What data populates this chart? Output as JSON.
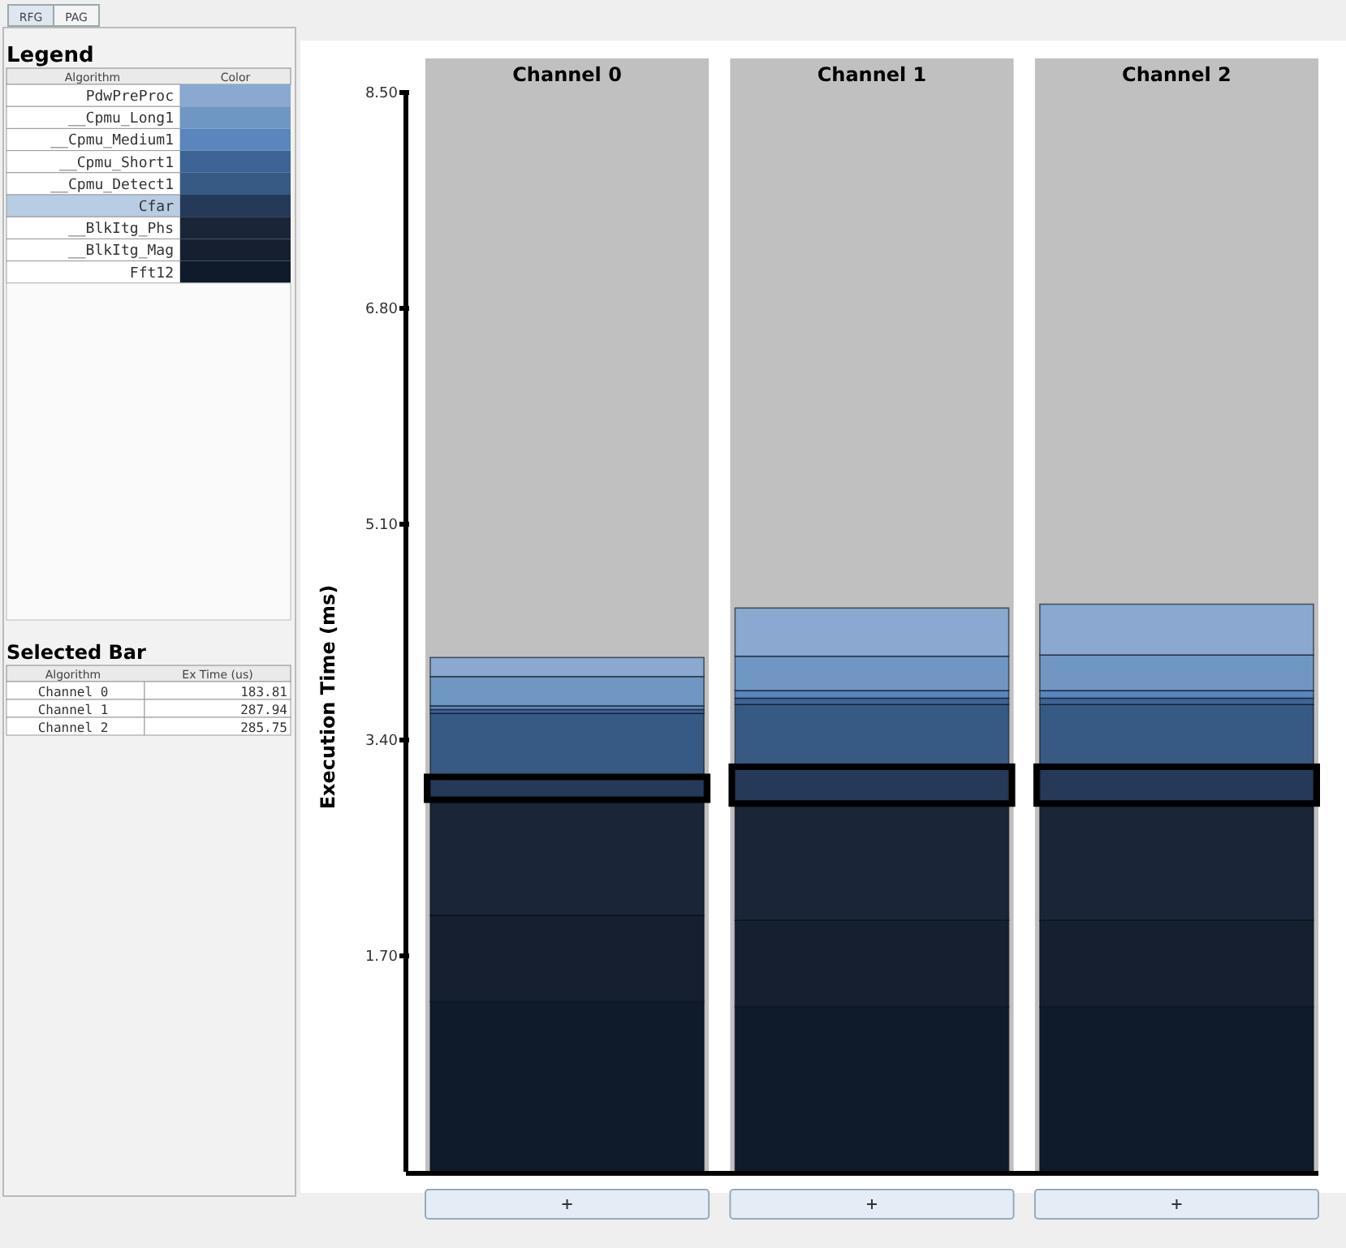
{
  "chart_data": {
    "type": "bar",
    "stacked": true,
    "ylabel": "Execution Time (ms)",
    "legend_title": "Legend",
    "legend": "left",
    "categories": [
      "Channel 0",
      "Channel 1",
      "Channel 2"
    ],
    "ylim": [
      0,
      8.5
    ],
    "yticks": [
      {
        "value": 1.7,
        "label": "1.70"
      },
      {
        "value": 3.4,
        "label": "3.40"
      },
      {
        "value": 5.1,
        "label": "5.10"
      },
      {
        "value": 6.8,
        "label": "6.80"
      },
      {
        "value": 8.5,
        "label": "8.50"
      }
    ],
    "series": [
      {
        "name": "Fft12",
        "color": "#0f1a2b",
        "values": [
          1.34,
          1.3,
          1.3
        ]
      },
      {
        "name": "__BlkItg_Mag",
        "color": "#151f30",
        "values": [
          0.68,
          0.68,
          0.68
        ]
      },
      {
        "name": "__BlkItg_Phs",
        "color": "#1a2538",
        "values": [
          0.91,
          0.92,
          0.92
        ]
      },
      {
        "name": "Cfar",
        "color": "#253a58",
        "values": [
          0.18,
          0.29,
          0.29
        ]
      },
      {
        "name": "__Cpmu_Detect1",
        "color": "#375a85",
        "values": [
          0.5,
          0.49,
          0.49
        ]
      },
      {
        "name": "__Cpmu_Short1",
        "color": "#3e6496",
        "values": [
          0.03,
          0.05,
          0.05
        ]
      },
      {
        "name": "__Cpmu_Medium1",
        "color": "#5a85bd",
        "values": [
          0.03,
          0.06,
          0.06
        ]
      },
      {
        "name": "__Cpmu_Long1",
        "color": "#7097c4",
        "values": [
          0.23,
          0.27,
          0.28
        ]
      },
      {
        "name": "PdwPreProc",
        "color": "#8aa8d0",
        "values": [
          0.15,
          0.38,
          0.4
        ]
      }
    ],
    "annotations": [
      "RFG",
      "PAG",
      "Algorithm",
      "Color",
      "Selected Bar",
      "Algorithm",
      "Ex Time (us)",
      "Channel 0",
      "183.81",
      "Channel 1",
      "287.94",
      "Channel 2",
      "285.75"
    ]
  }
}
